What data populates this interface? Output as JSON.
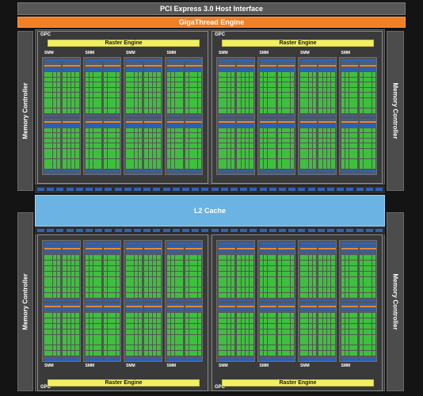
{
  "pcie_label": "PCI Express 3.0 Host Interface",
  "giga_label": "GigaThread Engine",
  "l2_label": "L2 Cache",
  "memory_controller_label": "Memory Controller",
  "gpc_label": "GPC",
  "raster_label": "Raster Engine",
  "smm_label": "SMM",
  "colors": {
    "background": "#141414",
    "host_interface": "#575757",
    "gigathread": "#f07f26",
    "l2_cache": "#6bb3e3",
    "raster_engine": "#f2ef63",
    "cuda_core": "#3fbf3f",
    "memory_block": "#2f62b5",
    "scheduler_orange": "#e8892e",
    "gpc_fill": "#3a3a3a"
  }
}
